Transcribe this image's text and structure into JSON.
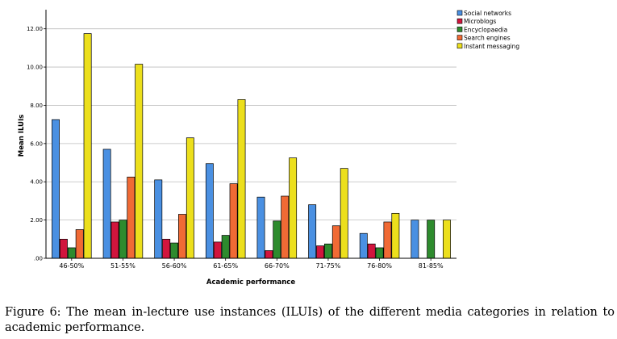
{
  "chart_data": {
    "type": "bar",
    "xlabel": "Academic performance",
    "ylabel": "Mean ILUIs",
    "ylim": [
      0,
      13
    ],
    "yticks": [
      0,
      2,
      4,
      6,
      8,
      10,
      12
    ],
    "ytick_labels": [
      ".00",
      "2.00",
      "4.00",
      "6.00",
      "8.00",
      "10.00",
      "12.00"
    ],
    "grid": true,
    "legend_position": "top-right",
    "categories": [
      "46-50%",
      "51-55%",
      "56-60%",
      "61-65%",
      "66-70%",
      "71-75%",
      "76-80%",
      "81-85%"
    ],
    "series": [
      {
        "name": "Social networks",
        "color": "#4a90e2",
        "values": [
          7.25,
          5.7,
          4.1,
          4.95,
          3.2,
          2.8,
          1.3,
          2.0
        ]
      },
      {
        "name": "Microblogs",
        "color": "#d1153d",
        "values": [
          1.0,
          1.9,
          1.0,
          0.85,
          0.4,
          0.65,
          0.75,
          null
        ]
      },
      {
        "name": "Encyclopaedia",
        "color": "#2e8b2e",
        "values": [
          0.55,
          2.0,
          0.8,
          1.2,
          1.95,
          0.75,
          0.55,
          2.0
        ]
      },
      {
        "name": "Search engines",
        "color": "#f06a35",
        "values": [
          1.5,
          4.25,
          2.3,
          3.9,
          3.25,
          1.7,
          1.9,
          null
        ]
      },
      {
        "name": "Instant messaging",
        "color": "#ecdf1c",
        "values": [
          11.75,
          10.15,
          6.3,
          8.3,
          5.25,
          4.7,
          2.35,
          2.0
        ]
      }
    ]
  },
  "caption": "Figure 6:  The mean in-lecture use instances (ILUIs) of the different media categories in relation to academic performance."
}
